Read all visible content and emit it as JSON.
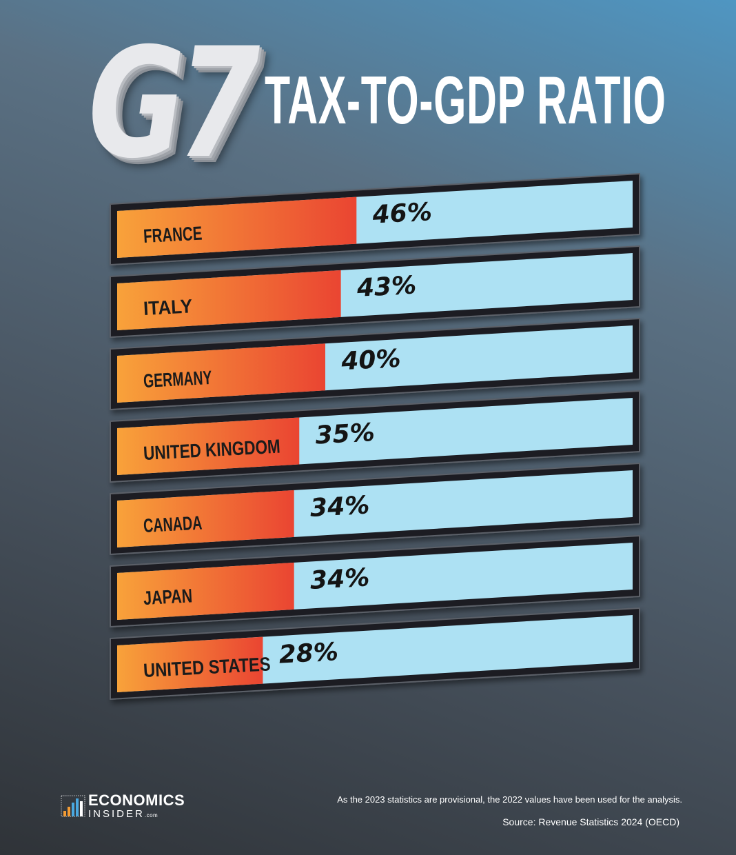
{
  "header": {
    "g7": "G7",
    "title": "TAX-TO-GDP RATIO"
  },
  "colors": {
    "bar_fill_start": "#f8a23a",
    "bar_fill_end": "#ea4532",
    "track": "#ade1f3",
    "frame": "#1a1d21"
  },
  "chart_data": {
    "type": "bar",
    "orientation": "horizontal",
    "title": "TAX-TO-GDP RATIO",
    "unit": "%",
    "categories": [
      "FRANCE",
      "ITALY",
      "GERMANY",
      "UNITED KINGDOM",
      "CANADA",
      "JAPAN",
      "UNITED STATES"
    ],
    "values": [
      46,
      43,
      40,
      35,
      34,
      34,
      28
    ],
    "value_labels": [
      "46%",
      "43%",
      "40%",
      "35%",
      "34%",
      "34%",
      "28%"
    ],
    "grid": false,
    "legend": "none"
  },
  "footer": {
    "brand_line1": "ECONOMICS",
    "brand_line2": "INSIDER",
    "brand_suffix": ".com",
    "note": "As the 2023 statistics are provisional, the 2022 values have been used for the analysis.",
    "source": "Source: Revenue Statistics 2024 (OECD)"
  }
}
